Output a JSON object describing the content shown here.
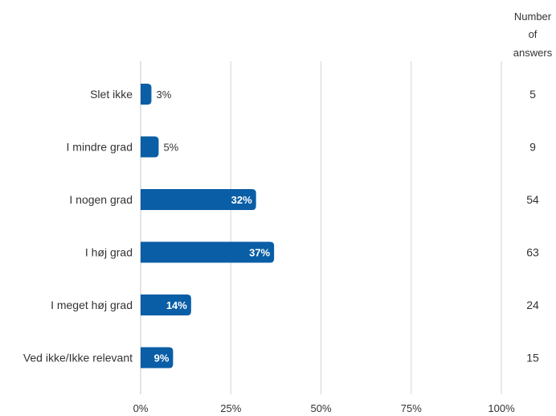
{
  "chart_data": {
    "type": "bar",
    "orientation": "horizontal",
    "categories": [
      "Slet ikke",
      "I mindre grad",
      "I nogen grad",
      "I høj grad",
      "I meget høj grad",
      "Ved ikke/Ikke relevant"
    ],
    "values": [
      3,
      5,
      32,
      37,
      14,
      9
    ],
    "value_labels": [
      "3%",
      "5%",
      "32%",
      "37%",
      "14%",
      "9%"
    ],
    "answers": [
      5,
      9,
      54,
      63,
      24,
      15
    ],
    "answers_header": [
      "Number",
      "of",
      "answers"
    ],
    "xlim": [
      0,
      100
    ],
    "x_ticks": [
      0,
      25,
      50,
      75,
      100
    ],
    "x_tick_labels": [
      "0%",
      "25%",
      "50%",
      "75%",
      "100%"
    ],
    "grid": true,
    "colors": {
      "bar": "#0a5ea6",
      "grid": "#d6d6d6",
      "text": "#333333"
    }
  }
}
